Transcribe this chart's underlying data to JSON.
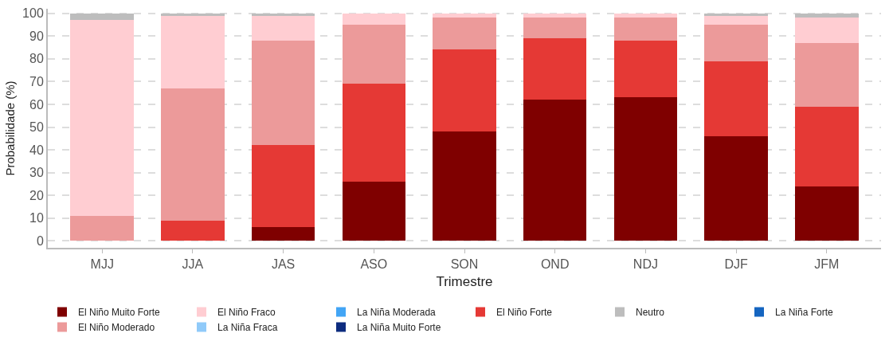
{
  "chart_data": {
    "type": "bar",
    "stacked": true,
    "xlabel": "Trimestre",
    "ylabel": "Probabilidade (%)",
    "categories": [
      "MJJ",
      "JJA",
      "JAS",
      "ASO",
      "SON",
      "OND",
      "NDJ",
      "DJF",
      "JFM"
    ],
    "series": [
      {
        "name": "El Niño Muito Forte",
        "color": "#7f0000",
        "values": [
          0,
          0,
          6,
          26,
          48,
          62,
          63,
          46,
          24
        ]
      },
      {
        "name": "El Niño Forte",
        "color": "#e53935",
        "values": [
          0,
          9,
          36,
          43,
          36,
          27,
          25,
          33,
          35
        ]
      },
      {
        "name": "El Niño Moderado",
        "color": "#ec9a9a",
        "values": [
          11,
          58,
          46,
          26,
          14,
          9,
          10,
          16,
          28
        ]
      },
      {
        "name": "El Niño Fraco",
        "color": "#ffcdd2",
        "values": [
          86,
          32,
          11,
          5,
          2,
          2,
          2,
          4,
          11
        ]
      },
      {
        "name": "Neutro",
        "color": "#bdbdbd",
        "values": [
          3,
          1,
          1,
          0,
          0,
          0,
          0,
          1,
          2
        ]
      },
      {
        "name": "La Niña Fraca",
        "color": "#90caf9",
        "values": [
          0,
          0,
          0,
          0,
          0,
          0,
          0,
          0,
          0
        ]
      },
      {
        "name": "La Niña Moderada",
        "color": "#42a5f5",
        "values": [
          0,
          0,
          0,
          0,
          0,
          0,
          0,
          0,
          0
        ]
      },
      {
        "name": "La Niña Forte",
        "color": "#1565c0",
        "values": [
          0,
          0,
          0,
          0,
          0,
          0,
          0,
          0,
          0
        ]
      },
      {
        "name": "La Niña Muito Forte",
        "color": "#0d2c7f",
        "values": [
          0,
          0,
          0,
          0,
          0,
          0,
          0,
          0,
          0
        ]
      }
    ],
    "ylim": [
      -3,
      102
    ],
    "yticks": [
      0,
      10,
      20,
      30,
      40,
      50,
      60,
      70,
      80,
      90,
      100
    ],
    "grid": "y",
    "legend": "bottom"
  }
}
